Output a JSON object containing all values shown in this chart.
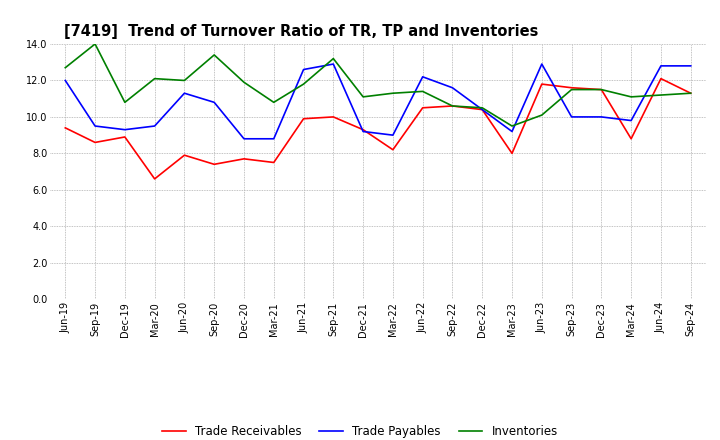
{
  "title": "[7419]  Trend of Turnover Ratio of TR, TP and Inventories",
  "x_labels": [
    "Jun-19",
    "Sep-19",
    "Dec-19",
    "Mar-20",
    "Jun-20",
    "Sep-20",
    "Dec-20",
    "Mar-21",
    "Jun-21",
    "Sep-21",
    "Dec-21",
    "Mar-22",
    "Jun-22",
    "Sep-22",
    "Dec-22",
    "Mar-23",
    "Jun-23",
    "Sep-23",
    "Dec-23",
    "Mar-24",
    "Jun-24",
    "Sep-24"
  ],
  "trade_receivables": [
    9.4,
    8.6,
    8.9,
    6.6,
    7.9,
    7.4,
    7.7,
    7.5,
    9.9,
    10.0,
    9.3,
    8.2,
    10.5,
    10.6,
    10.4,
    8.0,
    11.8,
    11.6,
    11.5,
    8.8,
    12.1,
    11.3
  ],
  "trade_payables": [
    12.0,
    9.5,
    9.3,
    9.5,
    11.3,
    10.8,
    8.8,
    8.8,
    12.6,
    12.9,
    9.2,
    9.0,
    12.2,
    11.6,
    10.4,
    9.2,
    12.9,
    10.0,
    10.0,
    9.8,
    12.8,
    12.8
  ],
  "inventories": [
    12.7,
    14.0,
    10.8,
    12.1,
    12.0,
    13.4,
    11.9,
    10.8,
    11.8,
    13.2,
    11.1,
    11.3,
    11.4,
    10.6,
    10.5,
    9.5,
    10.1,
    11.5,
    11.5,
    11.1,
    11.2,
    11.3
  ],
  "ylim": [
    0.0,
    14.0
  ],
  "yticks": [
    0.0,
    2.0,
    4.0,
    6.0,
    8.0,
    10.0,
    12.0,
    14.0
  ],
  "tr_color": "#ff0000",
  "tp_color": "#0000ff",
  "inv_color": "#008000",
  "legend_labels": [
    "Trade Receivables",
    "Trade Payables",
    "Inventories"
  ],
  "background_color": "#ffffff",
  "grid_color": "#b0b0b0",
  "title_fontsize": 10.5,
  "tick_fontsize": 7,
  "legend_fontsize": 8.5,
  "linewidth": 1.2
}
